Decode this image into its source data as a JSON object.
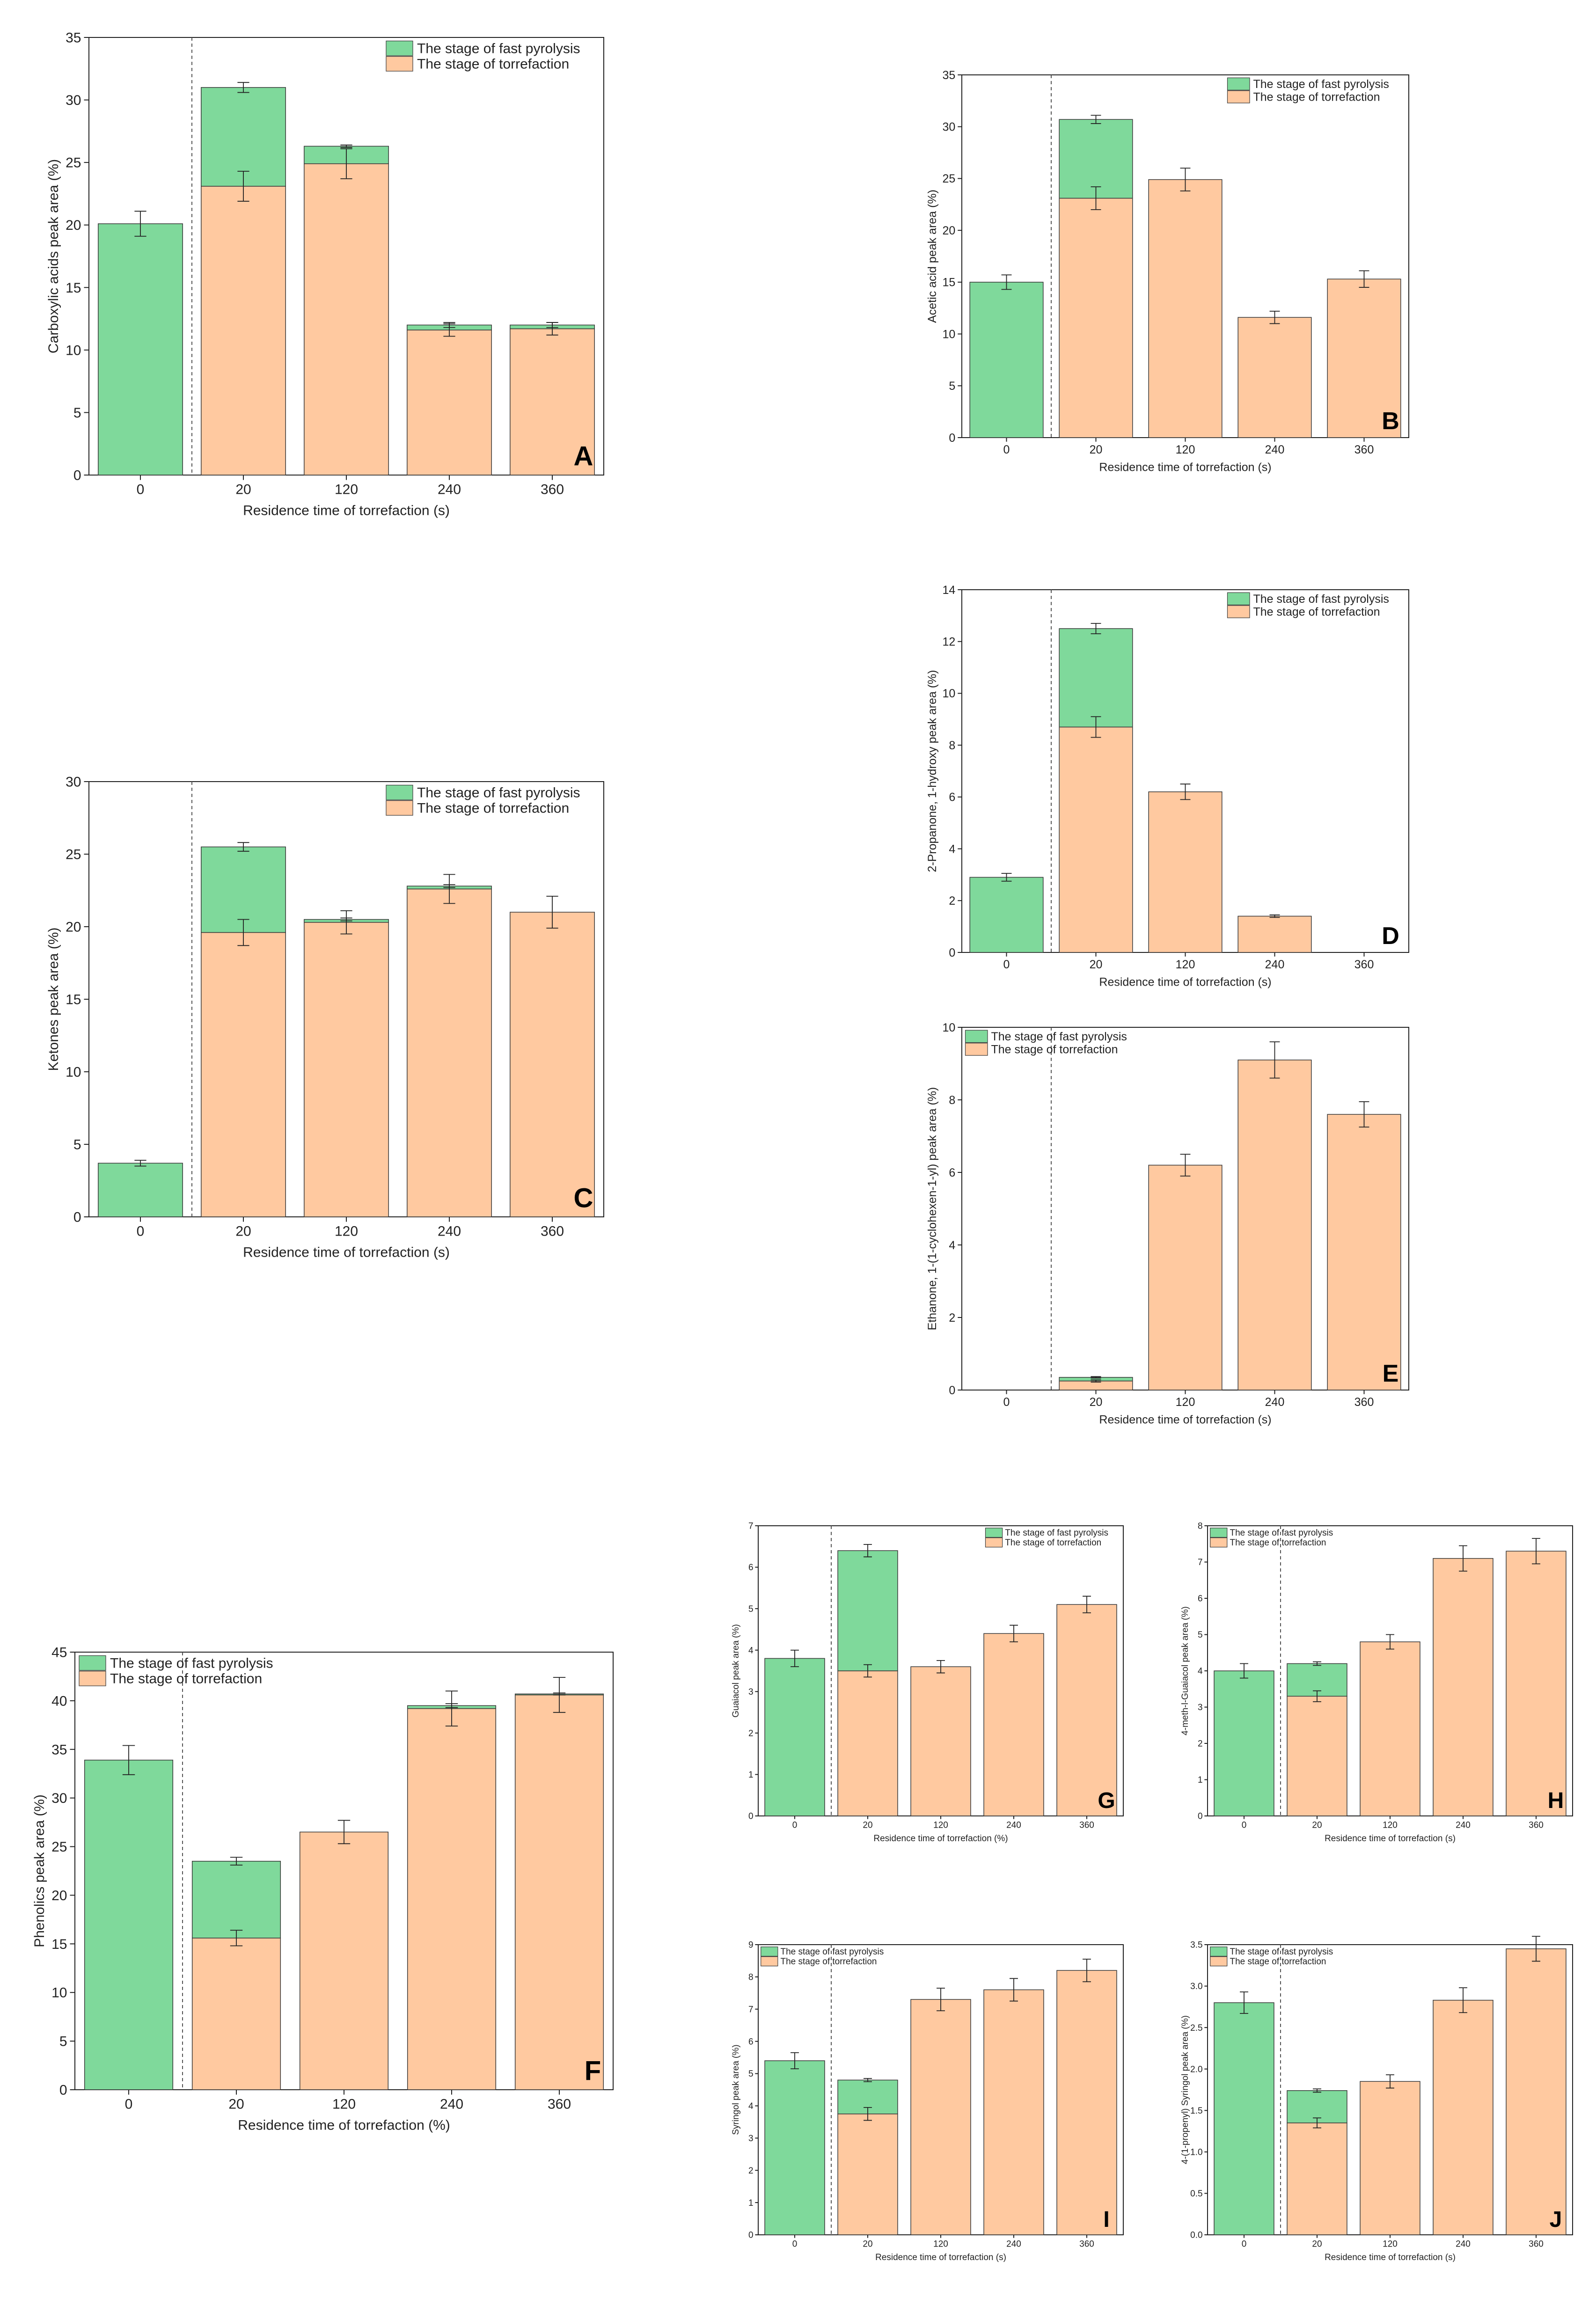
{
  "colors": {
    "fast_pyrolysis": "#7fd99b",
    "torrefaction": "#ffc9a0",
    "bar_stroke": "#3a3a3a",
    "axis": "#222222"
  },
  "legend": {
    "fast_pyrolysis": "The stage of fast pyrolysis",
    "torrefaction": "The stage of torrefaction"
  },
  "chart_data": [
    {
      "id": "A",
      "type": "bar",
      "stacked": true,
      "categories": [
        "0",
        "20",
        "120",
        "240",
        "360"
      ],
      "xlabel": "Residence time of torrefaction (s)",
      "ylabel": "Carboxylic acids peak area (%)",
      "ylim": [
        0,
        35
      ],
      "yticks": [
        0,
        5,
        10,
        15,
        20,
        25,
        30,
        35
      ],
      "legend_position": "top-right",
      "series": [
        {
          "name": "The stage of torrefaction",
          "values": [
            0,
            23.1,
            24.9,
            11.6,
            11.7
          ],
          "err": [
            0,
            1.2,
            1.2,
            0.5,
            0.5
          ]
        },
        {
          "name": "The stage of fast pyrolysis",
          "values": [
            20.1,
            7.9,
            1.4,
            0.4,
            0.3
          ],
          "err": [
            1.0,
            0.4,
            0.1,
            0.2,
            0.2
          ]
        }
      ]
    },
    {
      "id": "B",
      "type": "bar",
      "stacked": true,
      "categories": [
        "0",
        "20",
        "120",
        "240",
        "360"
      ],
      "xlabel": "Residence time of torrefaction (s)",
      "ylabel": "Acetic acid peak area (%)",
      "ylim": [
        0,
        35
      ],
      "yticks": [
        0,
        5,
        10,
        15,
        20,
        25,
        30,
        35
      ],
      "legend_position": "top-right",
      "series": [
        {
          "name": "The stage of torrefaction",
          "values": [
            0,
            23.1,
            24.9,
            11.6,
            15.3
          ],
          "err": [
            0,
            1.1,
            1.1,
            0.6,
            0.8
          ]
        },
        {
          "name": "The stage of fast pyrolysis",
          "values": [
            15.0,
            7.6,
            0,
            0,
            0
          ],
          "err": [
            0.7,
            0.4,
            0,
            0,
            0
          ]
        }
      ]
    },
    {
      "id": "C",
      "type": "bar",
      "stacked": true,
      "categories": [
        "0",
        "20",
        "120",
        "240",
        "360"
      ],
      "xlabel": "Residence time of torrefaction (s)",
      "ylabel": "Ketones peak area (%)",
      "ylim": [
        0,
        30
      ],
      "yticks": [
        0,
        5,
        10,
        15,
        20,
        25,
        30
      ],
      "legend_position": "top-right",
      "series": [
        {
          "name": "The stage of torrefaction",
          "values": [
            0,
            19.6,
            20.3,
            22.6,
            21.0
          ],
          "err": [
            0,
            0.9,
            0.8,
            1.0,
            1.1
          ]
        },
        {
          "name": "The stage of fast pyrolysis",
          "values": [
            3.7,
            5.9,
            0.2,
            0.2,
            0
          ],
          "err": [
            0.2,
            0.3,
            0.1,
            0.1,
            0
          ]
        }
      ]
    },
    {
      "id": "D",
      "type": "bar",
      "stacked": true,
      "categories": [
        "0",
        "20",
        "120",
        "240",
        "360"
      ],
      "xlabel": "Residence time of torrefaction (s)",
      "ylabel": "2-Propanone, 1-hydroxy peak area (%)",
      "ylim": [
        0,
        14
      ],
      "yticks": [
        0,
        2,
        4,
        6,
        8,
        10,
        12,
        14
      ],
      "legend_position": "top-right",
      "series": [
        {
          "name": "The stage of torrefaction",
          "values": [
            0,
            8.7,
            6.2,
            1.4,
            0
          ],
          "err": [
            0,
            0.4,
            0.3,
            0.05,
            0
          ]
        },
        {
          "name": "The stage of fast pyrolysis",
          "values": [
            2.9,
            3.8,
            0,
            0,
            0
          ],
          "err": [
            0.15,
            0.2,
            0,
            0,
            0
          ]
        }
      ]
    },
    {
      "id": "E",
      "type": "bar",
      "stacked": true,
      "categories": [
        "0",
        "20",
        "120",
        "240",
        "360"
      ],
      "xlabel": "Residence time of torrefaction (s)",
      "ylabel": "Ethanone, 1-(1-cyclohexen-1-yl) peak area (%)",
      "ylim": [
        0,
        10
      ],
      "yticks": [
        0,
        2,
        4,
        6,
        8,
        10
      ],
      "legend_position": "top-left",
      "series": [
        {
          "name": "The stage of torrefaction",
          "values": [
            0,
            0.25,
            6.2,
            9.1,
            7.6
          ],
          "err": [
            0,
            0.03,
            0.3,
            0.5,
            0.35
          ]
        },
        {
          "name": "The stage of fast pyrolysis",
          "values": [
            0,
            0.1,
            0,
            0,
            0
          ],
          "err": [
            0,
            0.02,
            0,
            0,
            0
          ]
        }
      ]
    },
    {
      "id": "F",
      "type": "bar",
      "stacked": true,
      "categories": [
        "0",
        "20",
        "120",
        "240",
        "360"
      ],
      "xlabel": "Residence time of torrefaction (%)",
      "ylabel": "Phenolics peak area (%)",
      "ylim": [
        0,
        45
      ],
      "yticks": [
        0,
        5,
        10,
        15,
        20,
        25,
        30,
        35,
        40,
        45
      ],
      "legend_position": "top-left",
      "series": [
        {
          "name": "The stage of torrefaction",
          "values": [
            0,
            15.6,
            26.5,
            39.2,
            40.6
          ],
          "err": [
            0,
            0.8,
            1.2,
            1.8,
            1.8
          ]
        },
        {
          "name": "The stage of fast pyrolysis",
          "values": [
            33.9,
            7.9,
            0,
            0.3,
            0.1
          ],
          "err": [
            1.5,
            0.4,
            0,
            0.2,
            0.1
          ]
        }
      ]
    },
    {
      "id": "G",
      "type": "bar",
      "stacked": true,
      "categories": [
        "0",
        "20",
        "120",
        "240",
        "360"
      ],
      "xlabel": "Residence time of torrefaction (%)",
      "ylabel": "Guaiacol peak area (%)",
      "ylim": [
        0,
        7
      ],
      "yticks": [
        0,
        1,
        2,
        3,
        4,
        5,
        6,
        7
      ],
      "legend_position": "top-right",
      "series": [
        {
          "name": "The stage of torrefaction",
          "values": [
            0,
            3.5,
            3.6,
            4.4,
            5.1
          ],
          "err": [
            0,
            0.15,
            0.15,
            0.2,
            0.2
          ]
        },
        {
          "name": "The stage of fast pyrolysis",
          "values": [
            3.8,
            2.9,
            0,
            0,
            0
          ],
          "err": [
            0.2,
            0.15,
            0,
            0,
            0
          ]
        }
      ]
    },
    {
      "id": "H",
      "type": "bar",
      "stacked": true,
      "categories": [
        "0",
        "20",
        "120",
        "240",
        "360"
      ],
      "xlabel": "Residence time of torrefaction (s)",
      "ylabel": "4-meth-l-Guaiacol peak area (%)",
      "ylim": [
        0,
        8
      ],
      "yticks": [
        0,
        1,
        2,
        3,
        4,
        5,
        6,
        7,
        8
      ],
      "legend_position": "top-left",
      "series": [
        {
          "name": "The stage of torrefaction",
          "values": [
            0,
            3.3,
            4.8,
            7.1,
            7.3
          ],
          "err": [
            0,
            0.15,
            0.2,
            0.35,
            0.35
          ]
        },
        {
          "name": "The stage of fast pyrolysis",
          "values": [
            4.0,
            0.9,
            0,
            0,
            0
          ],
          "err": [
            0.2,
            0.05,
            0,
            0,
            0
          ]
        }
      ]
    },
    {
      "id": "I",
      "type": "bar",
      "stacked": true,
      "categories": [
        "0",
        "20",
        "120",
        "240",
        "360"
      ],
      "xlabel": "Residence time of torrefaction (s)",
      "ylabel": "Syringol peak area (%)",
      "ylim": [
        0,
        9
      ],
      "yticks": [
        0,
        1,
        2,
        3,
        4,
        5,
        6,
        7,
        8,
        9
      ],
      "legend_position": "top-left",
      "series": [
        {
          "name": "The stage of torrefaction",
          "values": [
            0,
            3.75,
            7.3,
            7.6,
            8.2
          ],
          "err": [
            0,
            0.2,
            0.35,
            0.35,
            0.35
          ]
        },
        {
          "name": "The stage of fast pyrolysis",
          "values": [
            5.4,
            1.05,
            0,
            0,
            0
          ],
          "err": [
            0.25,
            0.05,
            0,
            0,
            0
          ]
        }
      ]
    },
    {
      "id": "J",
      "type": "bar",
      "stacked": true,
      "categories": [
        "0",
        "20",
        "120",
        "240",
        "360"
      ],
      "xlabel": "Residence time of torrefaction (s)",
      "ylabel": "4-(1-propenyl) Syringol peak area (%)",
      "ylim": [
        0,
        3.5
      ],
      "yticks": [
        "0.0",
        "0.5",
        "1.0",
        "1.5",
        "2.0",
        "2.5",
        "3.0",
        "3.5"
      ],
      "legend_position": "top-left",
      "series": [
        {
          "name": "The stage of torrefaction",
          "values": [
            0,
            1.35,
            1.85,
            2.83,
            3.45
          ],
          "err": [
            0,
            0.06,
            0.08,
            0.15,
            0.15
          ]
        },
        {
          "name": "The stage of fast pyrolysis",
          "values": [
            2.8,
            0.39,
            0,
            0,
            0
          ],
          "err": [
            0.13,
            0.02,
            0,
            0,
            0
          ]
        }
      ]
    }
  ]
}
